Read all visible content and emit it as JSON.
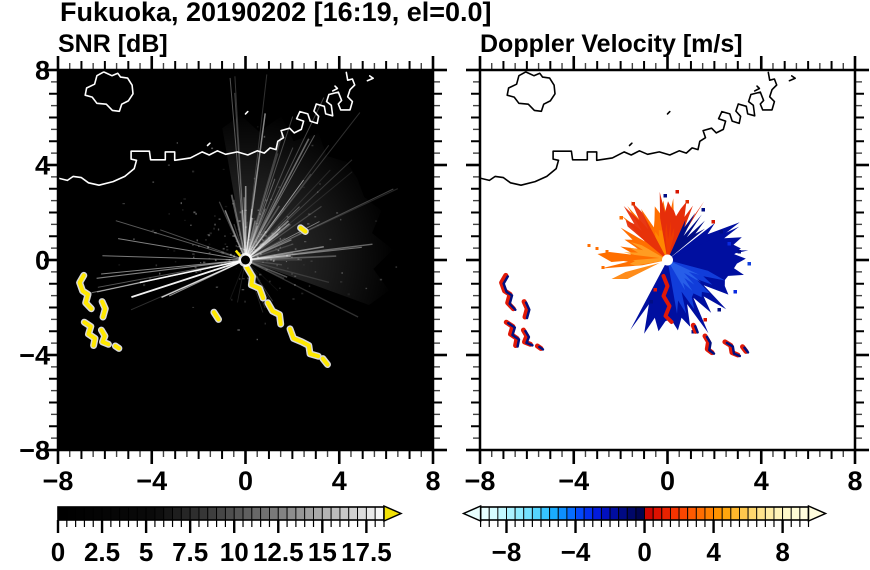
{
  "title": "Fukuoka, 20190202 [16:19, el=0.0]",
  "panels": {
    "left": {
      "label": "SNR [dB]"
    },
    "right": {
      "label": "Doppler Velocity [m/s]"
    }
  },
  "axes": {
    "range": [
      -8,
      8
    ],
    "major_step": 4,
    "minor_step": 0.5,
    "x_tick_labels": [
      "−8",
      "−4",
      "0",
      "4",
      "8"
    ],
    "x_tick_values": [
      -8,
      -4,
      0,
      4,
      8
    ],
    "y_tick_labels": [
      "8",
      "4",
      "0",
      "−4",
      "−8"
    ],
    "y_tick_values": [
      8,
      4,
      0,
      -4,
      -8
    ]
  },
  "colorbars": {
    "snr": {
      "range": [
        0,
        18.5
      ],
      "tick_step": 0.5,
      "major_step": 2.5,
      "tick_labels": [
        "0",
        "2.5",
        "5",
        "7.5",
        "10",
        "12.5",
        "15",
        "17.5"
      ],
      "label_values": [
        0,
        2.5,
        5,
        7.5,
        10,
        12.5,
        15,
        17.5
      ],
      "arrow_color": "#f2e205",
      "gray_stops": [
        [
          0,
          "#000000"
        ],
        [
          0.3,
          "#0b0b0b"
        ],
        [
          0.42,
          "#2e2e2e"
        ],
        [
          0.55,
          "#555555"
        ],
        [
          0.68,
          "#808080"
        ],
        [
          0.8,
          "#aaaaaa"
        ],
        [
          0.92,
          "#d6d6d6"
        ],
        [
          1,
          "#fbfbfb"
        ]
      ]
    },
    "velocity": {
      "range": [
        -9.5,
        9.5
      ],
      "tick_step": 0.5,
      "major_step": 4,
      "tick_labels": [
        "−8",
        "−4",
        "0",
        "4",
        "8"
      ],
      "label_values": [
        -8,
        -4,
        0,
        4,
        8
      ],
      "segment_colors_negative": [
        "#e8ffff",
        "#d6fcff",
        "#c2f8ff",
        "#aaf2ff",
        "#90ecff",
        "#74e2ff",
        "#55d6ff",
        "#36c4ff",
        "#1aadff",
        "#0d8fff",
        "#066dff",
        "#0349fa",
        "#0230ee",
        "#021bdc",
        "#0210c0",
        "#000da0",
        "#000a84",
        "#000768",
        "#000450"
      ],
      "segment_colors_positive": [
        "#cc0500",
        "#dd1100",
        "#ea2200",
        "#f53300",
        "#fc4600",
        "#ff5a00",
        "#ff6d00",
        "#ff8000",
        "#ff9300",
        "#ffa60d",
        "#ffb72b",
        "#ffc84d",
        "#ffd76e",
        "#ffe38c",
        "#ffeda6",
        "#fff4ba",
        "#fff9c9",
        "#fffcd4",
        "#fffddd"
      ]
    }
  },
  "colors": {
    "snr_background": "#000000",
    "vel_background": "#ffffff",
    "coast_left": "#ffffff",
    "coast_right": "#000000",
    "yellow_echo": "#ffe800",
    "yellow_halo": "#d9d9d9",
    "echo_orange": "#ff6f00",
    "echo_orange_light": "#ffa126",
    "echo_red": "#e62e0a",
    "echo_red_fringe": "#e01807",
    "echo_navy": "#000d85",
    "echo_blue_dark": "#000fa0",
    "echo_blue": "#1240dd",
    "echo_blue_light": "#2a62ea"
  },
  "geometry": {
    "coast": [
      [
        -8,
        3.45
      ],
      [
        -7.6,
        3.35
      ],
      [
        -7.35,
        3.52
      ],
      [
        -7.0,
        3.47
      ],
      [
        -6.7,
        3.25
      ],
      [
        -6.25,
        3.15
      ],
      [
        -5.65,
        3.3
      ],
      [
        -5.15,
        3.52
      ],
      [
        -4.75,
        3.85
      ],
      [
        -4.65,
        4.2
      ],
      [
        -4.88,
        4.25
      ],
      [
        -4.88,
        4.58
      ],
      [
        -4.1,
        4.58
      ],
      [
        -4.05,
        4.22
      ],
      [
        -3.42,
        4.22
      ],
      [
        -3.42,
        4.55
      ],
      [
        -3.02,
        4.55
      ],
      [
        -3.02,
        4.2
      ],
      [
        -2.35,
        4.3
      ],
      [
        -1.85,
        4.55
      ],
      [
        -1.55,
        4.42
      ],
      [
        -1.2,
        4.6
      ],
      [
        -0.85,
        4.45
      ],
      [
        -0.35,
        4.55
      ],
      [
        0.1,
        4.42
      ],
      [
        0.5,
        4.6
      ],
      [
        0.8,
        4.5
      ],
      [
        1.05,
        4.72
      ],
      [
        1.3,
        4.65
      ],
      [
        1.38,
        5.0
      ],
      [
        1.62,
        5.15
      ],
      [
        1.52,
        5.45
      ],
      [
        1.88,
        5.55
      ],
      [
        2.08,
        5.35
      ],
      [
        2.38,
        5.5
      ],
      [
        2.48,
        5.85
      ],
      [
        2.18,
        5.95
      ],
      [
        2.32,
        6.25
      ],
      [
        2.66,
        6.15
      ],
      [
        2.76,
        5.85
      ],
      [
        3.06,
        5.75
      ],
      [
        3.12,
        6.05
      ],
      [
        2.92,
        6.27
      ],
      [
        3.02,
        6.57
      ],
      [
        3.36,
        6.47
      ],
      [
        3.42,
        6.15
      ],
      [
        3.72,
        6.07
      ],
      [
        3.66,
        6.52
      ],
      [
        3.46,
        6.67
      ],
      [
        3.56,
        6.97
      ],
      [
        3.96,
        7.07
      ],
      [
        4.1,
        6.72
      ],
      [
        3.96,
        6.57
      ],
      [
        4.06,
        6.32
      ],
      [
        4.46,
        6.32
      ],
      [
        4.56,
        6.67
      ],
      [
        4.36,
        6.87
      ],
      [
        4.46,
        7.17
      ],
      [
        4.66,
        7.37
      ],
      [
        4.56,
        7.62
      ],
      [
        4.36,
        7.57
      ],
      [
        4.3,
        7.9
      ]
    ],
    "island": [
      [
        -6.05,
        7.92
      ],
      [
        -5.7,
        7.76
      ],
      [
        -5.45,
        7.86
      ],
      [
        -5.33,
        7.7
      ],
      [
        -5.03,
        7.66
      ],
      [
        -4.84,
        7.36
      ],
      [
        -4.8,
        7.0
      ],
      [
        -5.0,
        6.7
      ],
      [
        -5.28,
        6.56
      ],
      [
        -5.38,
        6.26
      ],
      [
        -5.68,
        6.3
      ],
      [
        -5.94,
        6.56
      ],
      [
        -6.34,
        6.6
      ],
      [
        -6.54,
        6.86
      ],
      [
        -6.84,
        6.94
      ],
      [
        -6.78,
        7.24
      ],
      [
        -6.44,
        7.4
      ],
      [
        -6.34,
        7.76
      ],
      [
        -6.05,
        7.92
      ]
    ],
    "islets": [
      [
        [
          -1.62,
          4.82
        ],
        [
          -1.52,
          4.92
        ]
      ],
      [
        [
          0.0,
          6.15
        ],
        [
          0.1,
          6.25
        ]
      ],
      [
        [
          3.72,
          7.12
        ],
        [
          3.92,
          7.22
        ],
        [
          3.82,
          7.32
        ]
      ],
      [
        [
          5.2,
          7.55
        ],
        [
          5.45,
          7.65
        ],
        [
          5.3,
          7.75
        ]
      ]
    ],
    "yellow_chains": [
      [
        [
          0.05,
          -0.3
        ],
        [
          0.3,
          -0.7
        ],
        [
          0.25,
          -1.05
        ],
        [
          0.6,
          -1.2
        ],
        [
          0.75,
          -1.6
        ]
      ],
      [
        [
          0.95,
          -1.8
        ],
        [
          1.15,
          -2.15
        ],
        [
          1.45,
          -2.3
        ],
        [
          1.5,
          -2.7
        ]
      ],
      [
        [
          1.9,
          -2.9
        ],
        [
          2.05,
          -3.3
        ],
        [
          2.4,
          -3.45
        ],
        [
          2.7,
          -3.6
        ],
        [
          2.75,
          -3.95
        ],
        [
          3.1,
          -4.05
        ]
      ],
      [
        [
          3.3,
          -4.15
        ],
        [
          3.5,
          -4.4
        ]
      ],
      [
        [
          2.35,
          1.35
        ],
        [
          2.55,
          1.2
        ]
      ],
      [
        [
          -1.35,
          -2.2
        ],
        [
          -1.15,
          -2.5
        ]
      ]
    ],
    "west_cluster": [
      [
        [
          -6.9,
          -0.65
        ],
        [
          -7.08,
          -0.95
        ],
        [
          -6.95,
          -1.3
        ],
        [
          -6.72,
          -1.45
        ],
        [
          -6.82,
          -1.8
        ],
        [
          -6.58,
          -2.05
        ]
      ],
      [
        [
          -6.12,
          -1.75
        ],
        [
          -5.98,
          -2.05
        ],
        [
          -6.08,
          -2.4
        ]
      ],
      [
        [
          -6.88,
          -2.62
        ],
        [
          -6.6,
          -2.8
        ],
        [
          -6.7,
          -3.12
        ],
        [
          -6.42,
          -3.3
        ],
        [
          -6.48,
          -3.6
        ]
      ],
      [
        [
          -6.15,
          -2.95
        ],
        [
          -6.0,
          -3.2
        ],
        [
          -6.1,
          -3.45
        ],
        [
          -5.85,
          -3.55
        ]
      ],
      [
        [
          -5.55,
          -3.62
        ],
        [
          -5.4,
          -3.72
        ]
      ]
    ],
    "se_pairs": [
      [
        [
          1.1,
          -2.75
        ],
        [
          1.2,
          -3.0
        ]
      ],
      [
        [
          1.6,
          -3.2
        ],
        [
          1.75,
          -3.45
        ],
        [
          1.7,
          -3.75
        ],
        [
          1.9,
          -3.9
        ]
      ],
      [
        [
          2.45,
          -3.45
        ],
        [
          2.7,
          -3.6
        ],
        [
          2.75,
          -3.9
        ],
        [
          3.0,
          -4.0
        ]
      ],
      [
        [
          3.2,
          -3.65
        ],
        [
          3.35,
          -3.85
        ]
      ]
    ]
  },
  "chart_data": [
    {
      "type": "heatmap",
      "title": "SNR [dB]",
      "x_range": [
        -8,
        8
      ],
      "y_range": [
        -8,
        8
      ],
      "x_ticks": [
        -8,
        -4,
        0,
        4,
        8
      ],
      "y_ticks": [
        8,
        4,
        0,
        -4,
        -8
      ],
      "grid": false,
      "colorbar": {
        "range": [
          0,
          18.5
        ],
        "tick_labels": [
          "0",
          "2.5",
          "5",
          "7.5",
          "10",
          "12.5",
          "15",
          "17.5"
        ],
        "colormap": "black-to-white grayscale, yellow overflow arrow"
      },
      "features": [
        {
          "name": "radar-site",
          "x": 0,
          "y": 0
        },
        {
          "name": "radial-clutter-streaks",
          "description": "bright gray rays from radar site, densest N-NE-E and W, radius up to ~6 km",
          "snr_db": "2-10"
        },
        {
          "name": "high-snr-echo-chain-southeast",
          "color": "yellow",
          "snr_db": ">17.5",
          "path_ref": "geometry.yellow_chains"
        },
        {
          "name": "high-snr-echoes-west",
          "color": "yellow",
          "snr_db": ">17.5",
          "path_ref": "geometry.west_cluster"
        },
        {
          "name": "coastline",
          "color": "white",
          "path_ref": "geometry.coast"
        },
        {
          "name": "island",
          "color": "white",
          "path_ref": "geometry.island"
        }
      ]
    },
    {
      "type": "heatmap",
      "title": "Doppler Velocity [m/s]",
      "x_range": [
        -8,
        8
      ],
      "y_range": [
        -8,
        8
      ],
      "x_ticks": [
        -8,
        -4,
        0,
        4,
        8
      ],
      "y_ticks": [
        8,
        4,
        0,
        -4,
        -8
      ],
      "grid": false,
      "colorbar": {
        "range": [
          -9.5,
          9.5
        ],
        "tick_labels": [
          "−8",
          "−4",
          "0",
          "4",
          "8"
        ],
        "colormap": "diverging: pale-cyan/cyan/blue/navy for negative, red/orange/yellow/cream for positive"
      },
      "features": [
        {
          "name": "receding-flow-sector",
          "color": "orange-red",
          "velocity_mps": "+1 to +7",
          "extent": "N through W of radar, radius ~2.5 km"
        },
        {
          "name": "approaching-flow-sector",
          "color": "navy-blue",
          "velocity_mps": "-2 to -9",
          "extent": "ENE through S of radar, radius ~3 km"
        },
        {
          "name": "radar-site-hole",
          "color": "white",
          "x": 0,
          "y": 0
        },
        {
          "name": "echo-pairs-west",
          "colors": [
            "red",
            "navy"
          ],
          "path_ref": "geometry.west_cluster"
        },
        {
          "name": "echo-pairs-southeast",
          "colors": [
            "red",
            "navy"
          ],
          "path_ref": "geometry.se_pairs"
        },
        {
          "name": "coastline",
          "color": "black",
          "path_ref": "geometry.coast"
        }
      ]
    }
  ]
}
